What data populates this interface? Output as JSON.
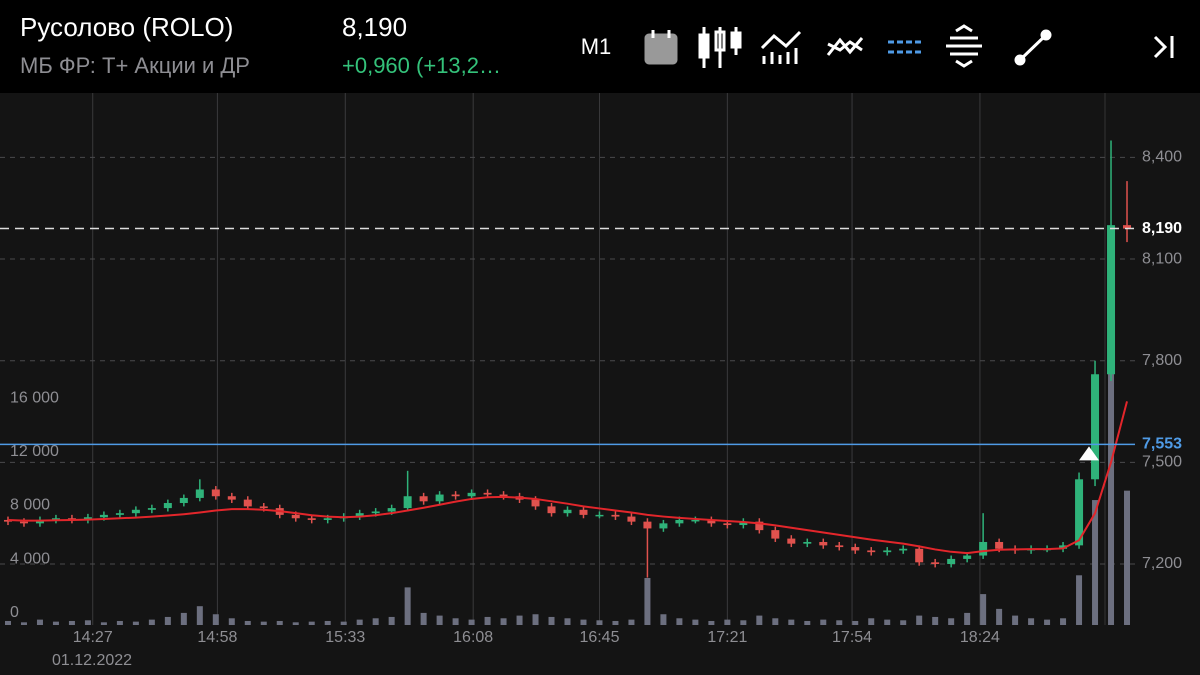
{
  "header": {
    "ticker": "Русолово (ROLO)",
    "price": "8,190",
    "market": "МБ ФР: Т+ Акции и ДР",
    "change": "+0,960 (+13,2…"
  },
  "toolbar": {
    "timeframe": "M1"
  },
  "chart_data": {
    "type": "candlestick",
    "up_color": "#2fb37a",
    "down_color": "#e0524e",
    "xlim": [
      -0.5,
      70.5
    ],
    "xticks": [
      {
        "value": 5.3,
        "label": "14:27"
      },
      {
        "value": 13.1,
        "label": "14:58"
      },
      {
        "value": 21.1,
        "label": "15:33"
      },
      {
        "value": 29.1,
        "label": "16:08"
      },
      {
        "value": 37.0,
        "label": "16:45"
      },
      {
        "value": 45.0,
        "label": "17:21"
      },
      {
        "value": 52.8,
        "label": "17:54"
      },
      {
        "value": 60.8,
        "label": "18:24"
      }
    ],
    "date_label": "01.12.2022",
    "ylim": [
      7020,
      8590
    ],
    "yticks": [
      {
        "value": 7200,
        "label": "7,200"
      },
      {
        "value": 7500,
        "label": "7,500"
      },
      {
        "value": 7800,
        "label": "7,800"
      },
      {
        "value": 8100,
        "label": "8,100"
      },
      {
        "value": 8400,
        "label": "8,400"
      }
    ],
    "y2lim": [
      0,
      39600
    ],
    "y2ticks": [
      0,
      {
        "value": 4000,
        "label": "4 000"
      },
      {
        "value": 8000,
        "label": "8 000"
      },
      {
        "value": 12000,
        "label": "12 000"
      },
      {
        "value": 16000,
        "label": "16 000"
      }
    ],
    "open": [
      7330,
      7325,
      7320,
      7330,
      7335,
      7330,
      7338,
      7345,
      7350,
      7360,
      7365,
      7380,
      7395,
      7420,
      7400,
      7390,
      7370,
      7365,
      7345,
      7335,
      7330,
      7335,
      7340,
      7350,
      7355,
      7365,
      7400,
      7385,
      7405,
      7400,
      7410,
      7405,
      7400,
      7390,
      7370,
      7350,
      7360,
      7345,
      7345,
      7340,
      7325,
      7305,
      7320,
      7330,
      7330,
      7320,
      7315,
      7325,
      7300,
      7275,
      7260,
      7265,
      7255,
      7250,
      7240,
      7235,
      7240,
      7245,
      7205,
      7200,
      7215,
      7225,
      7265,
      7245,
      7240,
      7245,
      7245,
      7255,
      7450,
      7760,
      8200
    ],
    "high": [
      7340,
      7335,
      7340,
      7345,
      7345,
      7348,
      7355,
      7360,
      7370,
      7375,
      7390,
      7405,
      7450,
      7430,
      7410,
      7400,
      7380,
      7375,
      7355,
      7345,
      7345,
      7350,
      7360,
      7365,
      7375,
      7475,
      7410,
      7415,
      7415,
      7420,
      7420,
      7415,
      7410,
      7400,
      7380,
      7370,
      7370,
      7355,
      7355,
      7350,
      7335,
      7330,
      7340,
      7340,
      7340,
      7330,
      7335,
      7335,
      7310,
      7285,
      7275,
      7275,
      7265,
      7260,
      7250,
      7250,
      7255,
      7255,
      7215,
      7225,
      7235,
      7350,
      7275,
      7255,
      7255,
      7255,
      7265,
      7470,
      7800,
      8450,
      8330
    ],
    "low": [
      7315,
      7310,
      7310,
      7320,
      7320,
      7320,
      7328,
      7335,
      7340,
      7350,
      7355,
      7370,
      7385,
      7390,
      7380,
      7360,
      7355,
      7335,
      7325,
      7320,
      7320,
      7325,
      7330,
      7340,
      7345,
      7355,
      7375,
      7375,
      7390,
      7390,
      7395,
      7390,
      7380,
      7360,
      7340,
      7340,
      7335,
      7335,
      7330,
      7315,
      7160,
      7295,
      7310,
      7320,
      7310,
      7305,
      7305,
      7290,
      7265,
      7250,
      7250,
      7245,
      7240,
      7230,
      7225,
      7225,
      7230,
      7195,
      7190,
      7190,
      7205,
      7215,
      7235,
      7230,
      7230,
      7235,
      7235,
      7245,
      7430,
      7740,
      8150
    ],
    "close": [
      7325,
      7320,
      7330,
      7335,
      7330,
      7338,
      7345,
      7350,
      7360,
      7365,
      7380,
      7395,
      7420,
      7400,
      7390,
      7370,
      7365,
      7345,
      7335,
      7330,
      7335,
      7340,
      7350,
      7355,
      7365,
      7400,
      7385,
      7405,
      7400,
      7410,
      7405,
      7400,
      7390,
      7370,
      7350,
      7360,
      7345,
      7345,
      7340,
      7325,
      7305,
      7320,
      7330,
      7330,
      7320,
      7315,
      7325,
      7300,
      7275,
      7260,
      7265,
      7255,
      7250,
      7240,
      7235,
      7240,
      7245,
      7205,
      7200,
      7215,
      7225,
      7265,
      7245,
      7240,
      7245,
      7245,
      7255,
      7450,
      7760,
      8200,
      8190
    ],
    "ma": {
      "color": "#e3262b",
      "values": [
        7330,
        7328,
        7328,
        7329,
        7330,
        7331,
        7333,
        7335,
        7337,
        7340,
        7343,
        7347,
        7352,
        7358,
        7362,
        7362,
        7360,
        7356,
        7350,
        7344,
        7340,
        7338,
        7340,
        7344,
        7350,
        7358,
        7366,
        7375,
        7384,
        7392,
        7397,
        7398,
        7396,
        7392,
        7385,
        7378,
        7370,
        7364,
        7358,
        7352,
        7345,
        7340,
        7336,
        7333,
        7330,
        7327,
        7324,
        7320,
        7314,
        7307,
        7300,
        7293,
        7286,
        7279,
        7272,
        7266,
        7260,
        7252,
        7243,
        7236,
        7232,
        7238,
        7242,
        7243,
        7244,
        7244,
        7246,
        7270,
        7350,
        7500,
        7680
      ]
    },
    "volume": {
      "axis": "y2",
      "color": "#6c6f7f",
      "values": [
        300,
        200,
        400,
        250,
        300,
        350,
        200,
        300,
        250,
        400,
        600,
        900,
        1400,
        800,
        500,
        300,
        250,
        300,
        200,
        250,
        300,
        250,
        400,
        500,
        600,
        2800,
        900,
        700,
        500,
        400,
        600,
        500,
        700,
        800,
        600,
        500,
        400,
        350,
        300,
        400,
        3500,
        800,
        500,
        400,
        300,
        400,
        350,
        700,
        500,
        400,
        300,
        400,
        350,
        300,
        500,
        400,
        350,
        700,
        600,
        500,
        900,
        2300,
        1200,
        700,
        500,
        400,
        500,
        3700,
        9300,
        19400,
        10000
      ]
    },
    "current_price": {
      "value": 8190,
      "label": "8,190"
    },
    "alert": {
      "value": 7553,
      "label": "7,553",
      "color": "#4f9be6"
    }
  }
}
